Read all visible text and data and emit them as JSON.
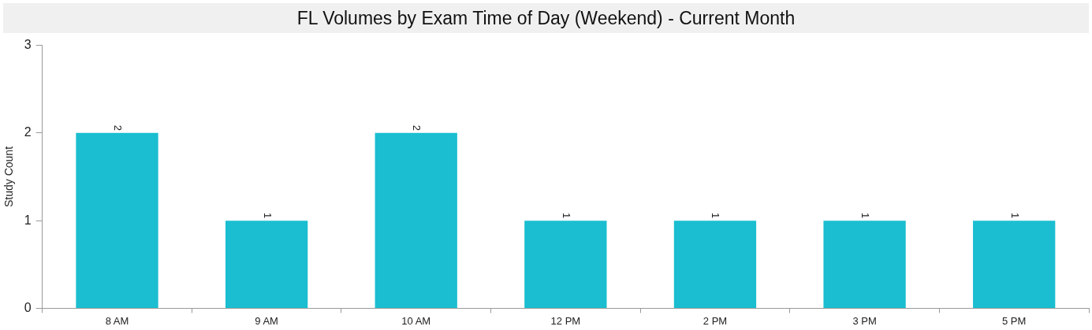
{
  "chart_data": {
    "type": "bar",
    "title": "FL Volumes by Exam Time of Day (Weekend) - Current Month",
    "ylabel": "Study Count",
    "categories": [
      "8 AM",
      "9 AM",
      "10 AM",
      "12 PM",
      "2 PM",
      "3 PM",
      "5 PM"
    ],
    "values": [
      2,
      1,
      2,
      1,
      1,
      1,
      1
    ],
    "color": "#1abed0",
    "ylim": [
      0,
      3
    ],
    "yticks": [
      0,
      1,
      2,
      3
    ],
    "grid": false,
    "legend": false,
    "data_labels": true
  }
}
